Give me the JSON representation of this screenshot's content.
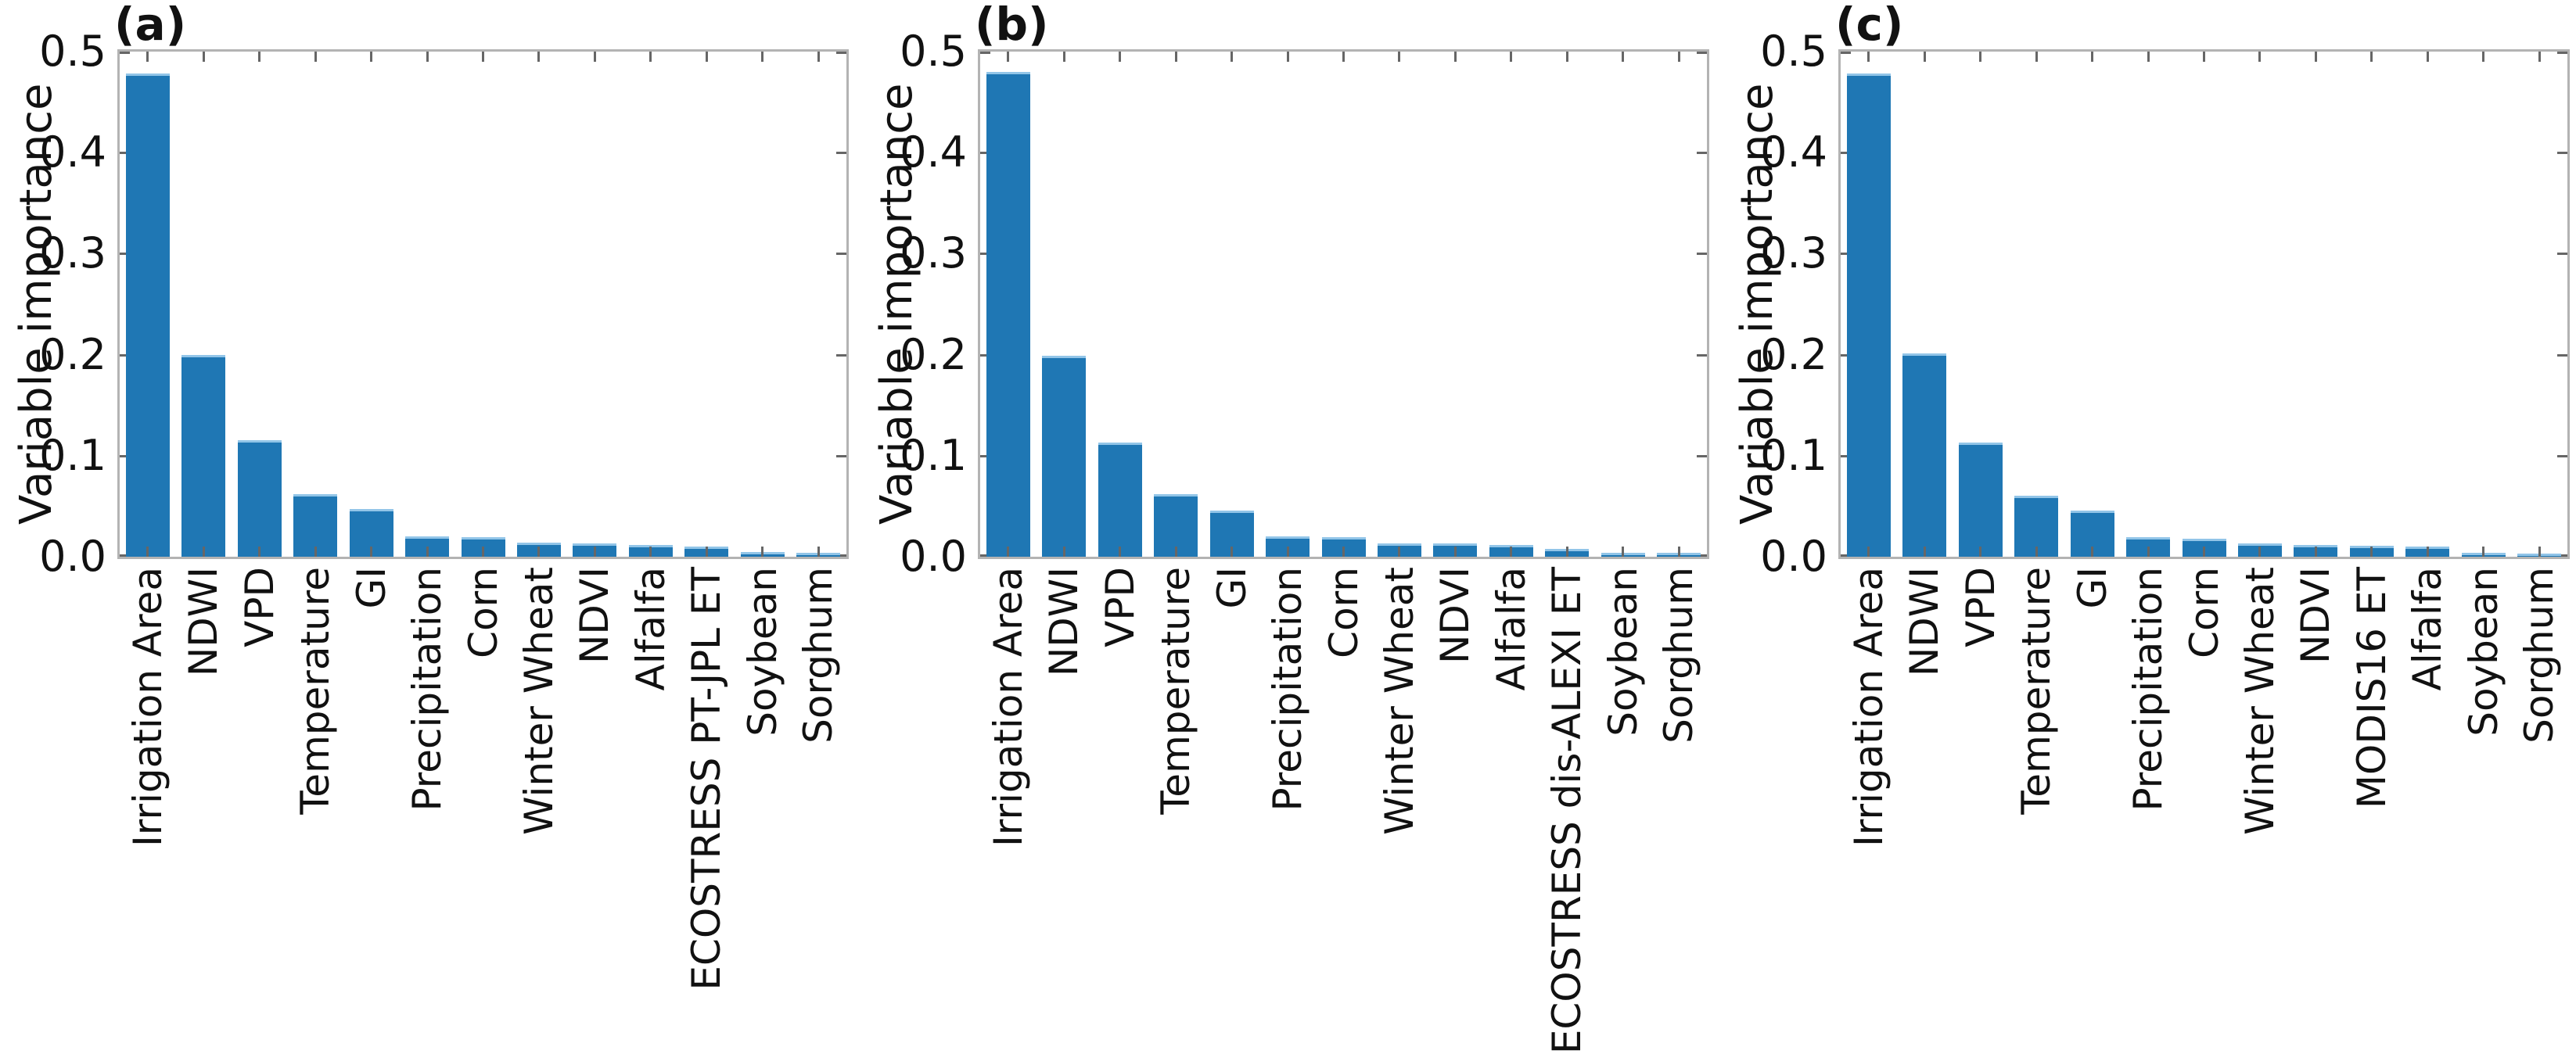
{
  "figure": {
    "background": "#ffffff",
    "bar_color": "#1f77b4",
    "bar_edge_color": "#92c5e8",
    "spine_color": "#b3b3b3",
    "tick_color": "#666666",
    "text_color": "#111111"
  },
  "chart_data": [
    {
      "panel_label": "(a)",
      "type": "bar",
      "title": "",
      "xlabel": "",
      "ylabel": "Variable importance",
      "ylim": [
        0,
        0.5
      ],
      "ytick_labels": [
        "0.0",
        "0.1",
        "0.2",
        "0.3",
        "0.4",
        "0.5"
      ],
      "grid": false,
      "legend": null,
      "categories": [
        "Irrigation Area",
        "NDWI",
        "VPD",
        "Temperature",
        "GI",
        "Precipitation",
        "Corn",
        "Winter Wheat",
        "NDVI",
        "Alfalfa",
        "ECOSTRESS PT-JPL ET",
        "Soybean",
        "Sorghum"
      ],
      "values": [
        0.478,
        0.2,
        0.115,
        0.062,
        0.047,
        0.02,
        0.019,
        0.014,
        0.013,
        0.012,
        0.01,
        0.005,
        0.004
      ]
    },
    {
      "panel_label": "(b)",
      "type": "bar",
      "title": "",
      "xlabel": "",
      "ylabel": "Variable importance",
      "ylim": [
        0,
        0.5
      ],
      "ytick_labels": [
        "0.0",
        "0.1",
        "0.2",
        "0.3",
        "0.4",
        "0.5"
      ],
      "grid": false,
      "legend": null,
      "categories": [
        "Irrigation Area",
        "NDWI",
        "VPD",
        "Temperature",
        "GI",
        "Precipitation",
        "Corn",
        "Winter Wheat",
        "NDVI",
        "Alfalfa",
        "ECOSTRESS dis-ALEXI ET",
        "Soybean",
        "Sorghum"
      ],
      "values": [
        0.48,
        0.199,
        0.113,
        0.062,
        0.046,
        0.02,
        0.019,
        0.013,
        0.013,
        0.012,
        0.008,
        0.004,
        0.004
      ]
    },
    {
      "panel_label": "(c)",
      "type": "bar",
      "title": "",
      "xlabel": "",
      "ylabel": "Variable importance",
      "ylim": [
        0,
        0.5
      ],
      "ytick_labels": [
        "0.0",
        "0.1",
        "0.2",
        "0.3",
        "0.4",
        "0.5"
      ],
      "grid": false,
      "legend": null,
      "categories": [
        "Irrigation Area",
        "NDWI",
        "VPD",
        "Temperature",
        "GI",
        "Precipitation",
        "Corn",
        "Winter Wheat",
        "NDVI",
        "MODIS16 ET",
        "Alfalfa",
        "Soybean",
        "Sorghum"
      ],
      "values": [
        0.478,
        0.201,
        0.113,
        0.06,
        0.046,
        0.019,
        0.018,
        0.013,
        0.012,
        0.011,
        0.01,
        0.004,
        0.003
      ]
    }
  ]
}
